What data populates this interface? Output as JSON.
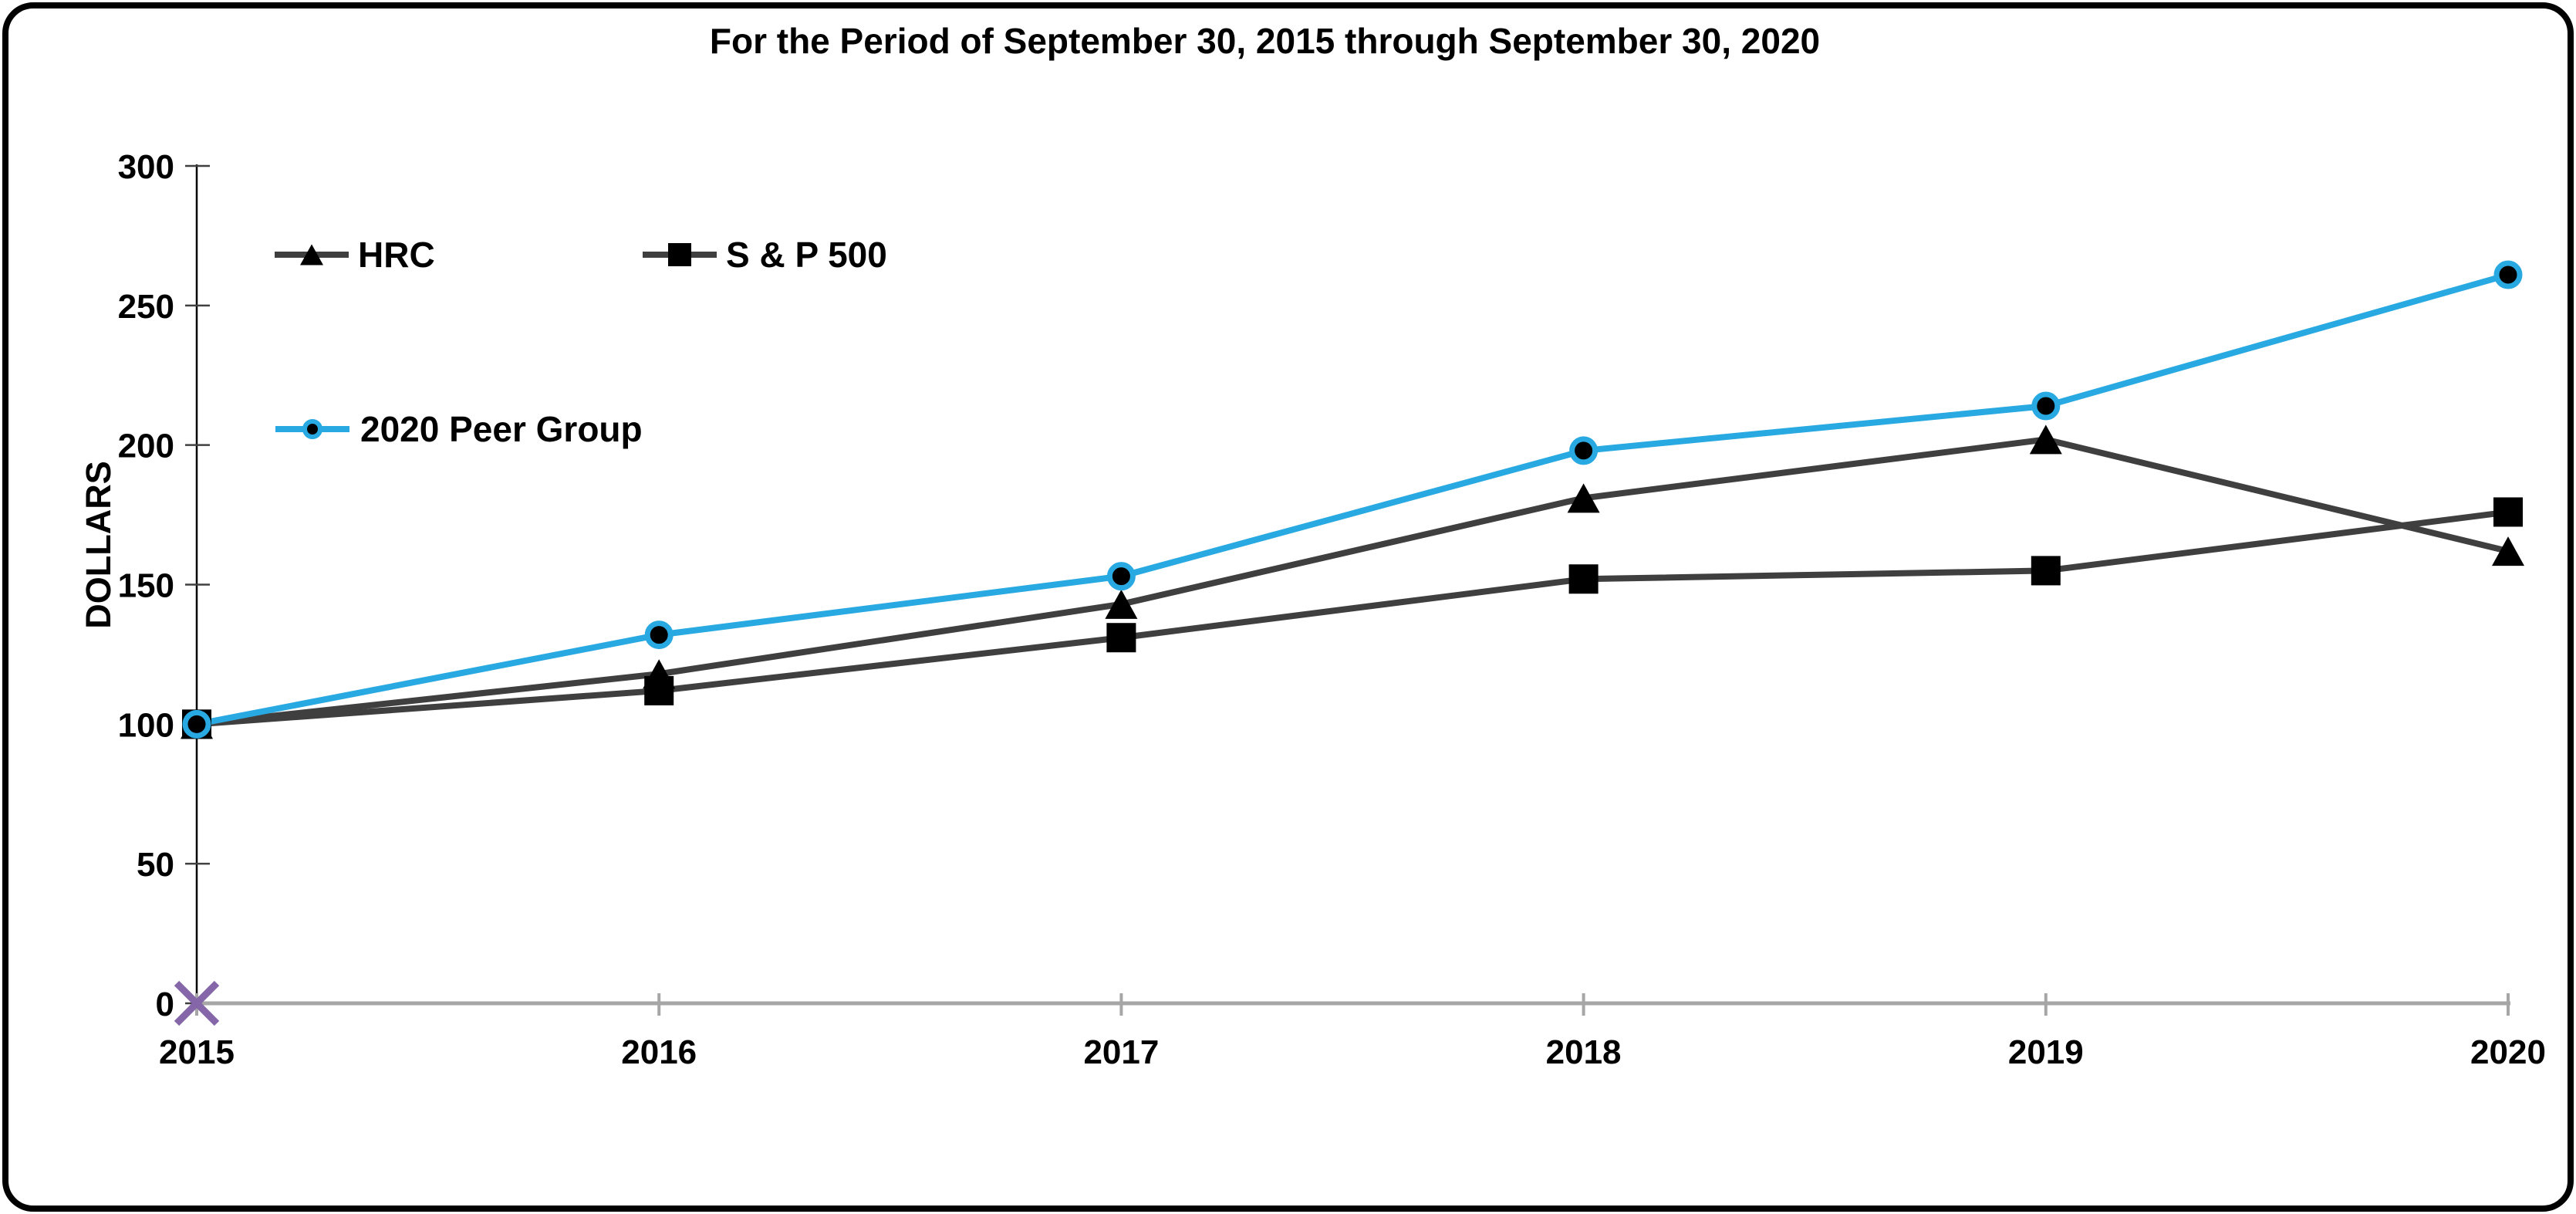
{
  "title": "For the Period of September 30, 2015 through September 30, 2020",
  "y_axis_label": "DOLLARS",
  "colors": {
    "peer_group_line": "#29a9e1",
    "dark_series_line": "#3f3f3f",
    "marker_fill": "#000000",
    "x_axis_line": "#a6a6a6",
    "y_axis_line": "#000000",
    "origin_marker": "#8566a8",
    "text": "#000000",
    "frame_border": "#000000"
  },
  "legend": [
    {
      "label": "HRC",
      "marker": "triangle-icon"
    },
    {
      "label": "S & P 500",
      "marker": "square-icon"
    },
    {
      "label": "2020 Peer Group",
      "marker": "circle-icon"
    }
  ],
  "chart_data": {
    "type": "line",
    "title": "For the Period of September 30, 2015 through September 30, 2020",
    "xlabel": "",
    "ylabel": "DOLLARS",
    "ylim": [
      0,
      300
    ],
    "y_ticks": [
      0,
      50,
      100,
      150,
      200,
      250,
      300
    ],
    "grid": false,
    "legend_position": "inside-top-left",
    "categories": [
      "2015",
      "2016",
      "2017",
      "2018",
      "2019",
      "2020"
    ],
    "series": [
      {
        "name": "HRC",
        "marker": "triangle",
        "line_color": "#3f3f3f",
        "marker_color": "#000000",
        "values": [
          100,
          118,
          143,
          181,
          202,
          162
        ]
      },
      {
        "name": "S & P 500",
        "marker": "square",
        "line_color": "#3f3f3f",
        "marker_color": "#000000",
        "values": [
          100,
          112,
          131,
          152,
          155,
          176
        ]
      },
      {
        "name": "2020 Peer Group",
        "marker": "circle",
        "line_color": "#29a9e1",
        "marker_color": "#000000",
        "marker_ring_color": "#29a9e1",
        "values": [
          100,
          132,
          153,
          198,
          214,
          261
        ]
      }
    ],
    "origin_marker": {
      "shape": "x",
      "color": "#8566a8",
      "at_category": "2015",
      "at_value": 0
    }
  }
}
